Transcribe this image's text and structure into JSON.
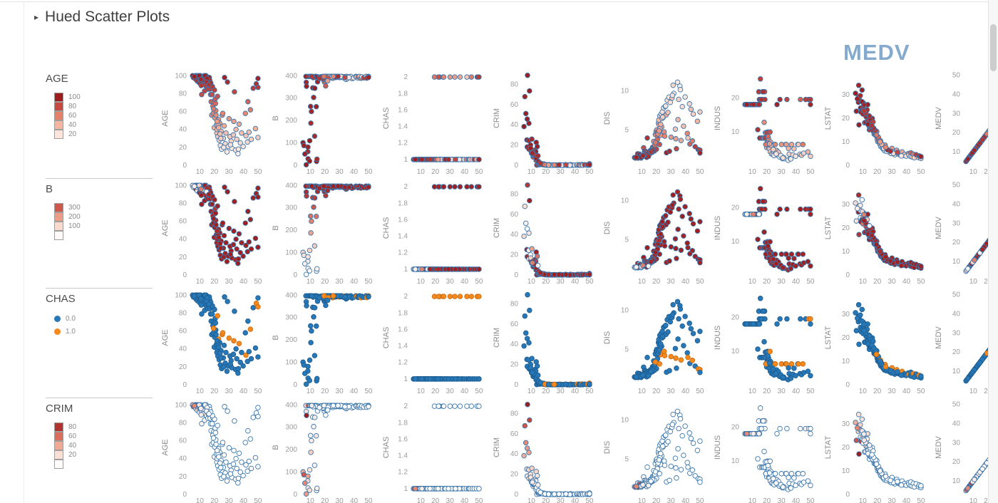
{
  "header": {
    "collapse_icon": "▸",
    "title": "Hued Scatter Plots"
  },
  "matrix_title": "MEDV",
  "colors": {
    "accent_title": "#84abce",
    "point_stroke": "#3b76ab",
    "separator": "#c9c9c9",
    "tick_text": "#9b9b9b"
  },
  "chart_data": {
    "type": "scatter",
    "description": "4x8 scatter-plot matrix of housing features vs MEDV (x axis 10-50 on every panel); each row of panels is hued by a different variable (AGE, B, CHAS, CRIM); last column is MEDV vs MEDV diagonal",
    "grid": "off",
    "x": {
      "field": "MEDV",
      "domain": [
        3,
        52
      ],
      "ticks": [
        10,
        20,
        30,
        40,
        50
      ]
    },
    "columns": [
      {
        "label": "AGE",
        "field": "AGE",
        "domain": [
          0,
          105
        ],
        "ticks": [
          0,
          20,
          40,
          60,
          80,
          100
        ]
      },
      {
        "label": "B",
        "field": "B",
        "domain": [
          0,
          420
        ],
        "ticks": [
          0,
          100,
          200,
          300,
          400
        ]
      },
      {
        "label": "CHAS",
        "field": "CHAS",
        "domain": [
          0.93,
          2.07
        ],
        "ticks": [
          1,
          1.2,
          1.4,
          1.6,
          1.8,
          2
        ],
        "transform": "chas"
      },
      {
        "label": "CRIM",
        "field": "CRIM",
        "domain": [
          0,
          93
        ],
        "ticks": [
          0,
          20,
          40,
          60,
          80
        ]
      },
      {
        "label": "DIS",
        "field": "DIS",
        "domain": [
          0.5,
          12.5
        ],
        "ticks": [
          5,
          10
        ]
      },
      {
        "label": "INDUS",
        "field": "INDUS",
        "domain": [
          0,
          28
        ],
        "ticks": [
          10,
          20
        ]
      },
      {
        "label": "LSTAT",
        "field": "LSTAT",
        "domain": [
          0,
          40
        ],
        "ticks": [
          0,
          10,
          20,
          30
        ]
      },
      {
        "label": "MEDV",
        "field": "MEDV",
        "domain": [
          3,
          52
        ],
        "ticks": [
          10,
          20,
          30,
          40,
          50
        ]
      }
    ],
    "hue_rows": [
      {
        "title": "AGE",
        "type": "seq",
        "field": "AGE",
        "domain": [
          0,
          100
        ],
        "cells": [
          100,
          80,
          60,
          40,
          20
        ],
        "labels": [
          "100",
          "80",
          "60",
          "40",
          "20"
        ]
      },
      {
        "title": "B",
        "type": "seq",
        "field": "B",
        "domain": [
          0,
          400
        ],
        "cells": [
          300,
          200,
          100,
          15
        ],
        "labels": [
          "300",
          "200",
          "100",
          ""
        ]
      },
      {
        "title": "CHAS",
        "type": "cat",
        "field": "CHAS",
        "entries": [
          {
            "label": "0.0",
            "value": 0,
            "fill": "#2878b8",
            "stroke": "#1d5e92"
          },
          {
            "label": "1.0",
            "value": 1,
            "fill": "#f6891e",
            "stroke": "#c96d12"
          }
        ]
      },
      {
        "title": "CRIM",
        "type": "seq",
        "field": "CRIM",
        "domain": [
          0,
          89
        ],
        "cells": [
          80,
          60,
          40,
          20,
          2
        ],
        "labels": [
          "80",
          "60",
          "40",
          "20",
          ""
        ]
      }
    ],
    "seq_color_stops": [
      "#ffffff",
      "#fde5dc",
      "#f5b6a0",
      "#e5816b",
      "#c74a42",
      "#9e1c1c"
    ],
    "point_stroke": "#3b76ab",
    "fields": [
      "MEDV",
      "AGE",
      "B",
      "CHAS",
      "CRIM",
      "DIS",
      "INDUS",
      "LSTAT"
    ],
    "records": [
      [
        5.0,
        100,
        101.0,
        0,
        38.35,
        1.49,
        18.1,
        30.6
      ],
      [
        5.6,
        98,
        88.0,
        0,
        67.92,
        1.43,
        18.1,
        23.0
      ],
      [
        7.0,
        100,
        396.9,
        0,
        25.05,
        1.59,
        18.1,
        26.8
      ],
      [
        7.2,
        100,
        2.6,
        0,
        45.75,
        1.67,
        18.1,
        29.1
      ],
      [
        7.2,
        96,
        370.7,
        0,
        18.08,
        1.96,
        18.1,
        34.0
      ],
      [
        7.4,
        100,
        353.0,
        0,
        88.98,
        1.42,
        18.1,
        17.2
      ],
      [
        8.3,
        94,
        60.7,
        0,
        24.39,
        1.75,
        18.1,
        29.6
      ],
      [
        8.4,
        98,
        81.3,
        0,
        41.53,
        1.66,
        18.1,
        27.4
      ],
      [
        8.5,
        100,
        28.8,
        0,
        15.86,
        1.92,
        18.1,
        24.4
      ],
      [
        8.8,
        100,
        396.9,
        0,
        73.53,
        1.8,
        18.1,
        22.6
      ],
      [
        9.5,
        100,
        18.8,
        0,
        20.08,
        1.44,
        18.1,
        32.0
      ],
      [
        9.7,
        92,
        396.9,
        0,
        14.24,
        1.66,
        18.1,
        23.7
      ],
      [
        10.2,
        97,
        262.8,
        0,
        11.81,
        1.66,
        18.1,
        21.8
      ],
      [
        10.4,
        95,
        188.1,
        0,
        25.94,
        1.62,
        18.1,
        24.9
      ],
      [
        10.5,
        100,
        396.9,
        0,
        14.33,
        1.59,
        18.1,
        26.5
      ],
      [
        10.9,
        94,
        396.9,
        0,
        12.25,
        1.78,
        18.1,
        23.8
      ],
      [
        11.3,
        79,
        396.9,
        0,
        8.26,
        2.74,
        18.1,
        18.1
      ],
      [
        11.7,
        98,
        346.0,
        0,
        9.6,
        1.8,
        18.1,
        23.3
      ],
      [
        11.9,
        98,
        393.5,
        0,
        9.92,
        2.28,
        18.1,
        18.3
      ],
      [
        12.3,
        96,
        302.8,
        0,
        9.91,
        2.07,
        18.1,
        20.6
      ],
      [
        12.7,
        91,
        395.1,
        0,
        15.18,
        2.26,
        18.1,
        23.3
      ],
      [
        13.0,
        94,
        130.0,
        0,
        9.82,
        2.07,
        18.1,
        23.6
      ],
      [
        13.1,
        100,
        344.1,
        0,
        13.52,
        1.91,
        18.1,
        20.3
      ],
      [
        13.3,
        83,
        396.9,
        0,
        4.9,
        2.13,
        18.1,
        18.9
      ],
      [
        13.4,
        100,
        396.9,
        0,
        22.6,
        1.52,
        18.1,
        25.8
      ],
      [
        13.8,
        91,
        396.9,
        0,
        0.21,
        3.98,
        10.6,
        18.8
      ],
      [
        14.1,
        98,
        261.9,
        0,
        18.5,
        1.99,
        18.1,
        21.1
      ],
      [
        14.3,
        100,
        17.6,
        0,
        9.19,
        2.0,
        18.1,
        16.7
      ],
      [
        14.5,
        88,
        396.2,
        0,
        1.62,
        1.76,
        21.9,
        15.1
      ],
      [
        14.9,
        93,
        387.9,
        0,
        2.37,
        2.01,
        19.6,
        16.3
      ],
      [
        15.2,
        96,
        394.0,
        0,
        1.23,
        2.26,
        8.1,
        18.7
      ],
      [
        15.6,
        85,
        394.7,
        0,
        0.62,
        1.98,
        25.7,
        16.0
      ],
      [
        16.1,
        89,
        387.3,
        0,
        1.42,
        2.42,
        19.6,
        16.1
      ],
      [
        16.5,
        98,
        391.7,
        0,
        0.84,
        2.44,
        8.1,
        19.9
      ],
      [
        17.1,
        85,
        392.7,
        0,
        1.61,
        2.15,
        21.9,
        18.5
      ],
      [
        17.4,
        79,
        395.6,
        0,
        0.78,
        2.8,
        8.1,
        14.4
      ],
      [
        17.8,
        71,
        390.1,
        0,
        1.0,
        2.68,
        8.1,
        13.3
      ],
      [
        18.2,
        56,
        395.0,
        0,
        0.72,
        3.55,
        12.8,
        14.0
      ],
      [
        18.5,
        79,
        394.3,
        0,
        0.65,
        2.9,
        21.9,
        13.0
      ],
      [
        18.9,
        86,
        396.9,
        0,
        0.8,
        2.71,
        8.1,
        14.7
      ],
      [
        19.3,
        58,
        395.6,
        0,
        0.33,
        4.43,
        6.2,
        12.5
      ],
      [
        19.6,
        70,
        372.8,
        0,
        0.54,
        3.37,
        6.2,
        14.4
      ],
      [
        19.9,
        42,
        393.6,
        0,
        0.26,
        4.84,
        5.3,
        11.2
      ],
      [
        20.3,
        53,
        396.9,
        0,
        0.22,
        5.01,
        7.0,
        10.1
      ],
      [
        20.6,
        74,
        354.3,
        0,
        0.43,
        4.72,
        9.9,
        11.6
      ],
      [
        21.0,
        61,
        377.7,
        0,
        0.34,
        4.16,
        7.4,
        10.5
      ],
      [
        21.4,
        45,
        396.9,
        0,
        0.17,
        5.89,
        5.1,
        9.8
      ],
      [
        21.7,
        36,
        393.4,
        0,
        0.12,
        6.27,
        4.9,
        9.3
      ],
      [
        22.0,
        40,
        395.2,
        0,
        0.14,
        5.62,
        6.1,
        8.7
      ],
      [
        22.4,
        32,
        396.9,
        0,
        0.1,
        6.81,
        4.0,
        8.0
      ],
      [
        22.9,
        51,
        389.7,
        1,
        0.3,
        4.33,
        6.2,
        9.1
      ],
      [
        23.3,
        28,
        394.6,
        0,
        0.09,
        7.04,
        3.4,
        7.6
      ],
      [
        23.7,
        47,
        396.9,
        0,
        0.19,
        5.41,
        5.9,
        8.4
      ],
      [
        24.1,
        22,
        395.9,
        0,
        0.08,
        7.31,
        3.2,
        6.9
      ],
      [
        24.6,
        38,
        393.9,
        0,
        0.11,
        6.59,
        4.1,
        7.3
      ],
      [
        25.0,
        18,
        396.9,
        0,
        0.06,
        7.83,
        2.9,
        6.2
      ],
      [
        25.4,
        56,
        388.5,
        1,
        0.33,
        4.76,
        6.2,
        8.6
      ],
      [
        26.2,
        30,
        394.9,
        0,
        0.08,
        8.01,
        3.8,
        6.5
      ],
      [
        26.7,
        44,
        396.3,
        0,
        0.12,
        6.93,
        4.4,
        6.8
      ],
      [
        27.5,
        24,
        392.2,
        0,
        0.07,
        8.79,
        3.0,
        5.9
      ],
      [
        28.0,
        36,
        396.9,
        0,
        0.1,
        7.24,
        3.9,
        6.1
      ],
      [
        28.7,
        15,
        394.1,
        0,
        0.05,
        9.19,
        2.5,
        5.4
      ],
      [
        29.6,
        21,
        396.9,
        0,
        0.06,
        8.53,
        2.9,
        5.0
      ],
      [
        30.1,
        52,
        391.9,
        1,
        0.44,
        4.09,
        6.2,
        7.2
      ],
      [
        30.8,
        32,
        392.8,
        0,
        0.05,
        9.08,
        2.0,
        5.6
      ],
      [
        31.5,
        27,
        396.9,
        0,
        0.05,
        10.71,
        2.3,
        4.8
      ],
      [
        32.0,
        19,
        392.9,
        0,
        0.04,
        9.67,
        2.0,
        4.5
      ],
      [
        33.1,
        34,
        390.5,
        0,
        0.33,
        5.12,
        6.2,
        5.3
      ],
      [
        33.4,
        49,
        395.8,
        1,
        0.52,
        3.88,
        6.2,
        6.4
      ],
      [
        34.6,
        17,
        383.4,
        0,
        0.03,
        11.1,
        1.5,
        4.7
      ],
      [
        34.9,
        40,
        396.9,
        0,
        0.09,
        6.33,
        5.0,
        5.1
      ],
      [
        35.4,
        29,
        387.0,
        0,
        0.05,
        8.91,
        3.3,
        4.6
      ],
      [
        36.2,
        13,
        395.6,
        0,
        0.03,
        10.59,
        2.0,
        4.3
      ],
      [
        37.0,
        46,
        393.1,
        1,
        0.61,
        3.66,
        6.2,
        5.7
      ],
      [
        37.9,
        25,
        396.9,
        0,
        0.06,
        7.98,
        3.1,
        4.2
      ],
      [
        38.7,
        36,
        387.4,
        0,
        0.18,
        5.49,
        4.9,
        4.6
      ],
      [
        39.8,
        21,
        390.7,
        0,
        0.04,
        9.22,
        2.7,
        3.9
      ],
      [
        41.3,
        58,
        396.9,
        0,
        0.29,
        4.57,
        6.2,
        5.0
      ],
      [
        41.7,
        33,
        394.5,
        1,
        0.53,
        3.99,
        6.2,
        4.4
      ],
      [
        42.8,
        26,
        389.9,
        0,
        0.05,
        8.34,
        3.3,
        3.8
      ],
      [
        43.1,
        71,
        395.2,
        0,
        0.58,
        3.22,
        19.6,
        5.3
      ],
      [
        43.8,
        37,
        396.9,
        0,
        0.06,
        7.65,
        3.0,
        3.6
      ],
      [
        44.8,
        62,
        388.4,
        1,
        0.67,
        3.61,
        6.2,
        4.7
      ],
      [
        45.4,
        29,
        395.0,
        0,
        0.08,
        7.04,
        3.6,
        3.2
      ],
      [
        46.7,
        86,
        390.6,
        0,
        0.52,
        2.87,
        19.6,
        4.5
      ],
      [
        48.3,
        41,
        396.9,
        0,
        0.11,
        6.12,
        4.0,
        3.3
      ],
      [
        48.8,
        91,
        389.6,
        1,
        0.57,
        2.51,
        19.6,
        4.0
      ],
      [
        50.0,
        87,
        396.9,
        1,
        1.46,
        2.44,
        19.6,
        3.2
      ],
      [
        50.0,
        31,
        394.7,
        0,
        0.06,
        7.31,
        2.7,
        2.9
      ],
      [
        50.0,
        97,
        392.5,
        0,
        0.61,
        2.07,
        18.1,
        3.7
      ],
      [
        13.6,
        100,
        394.3,
        0,
        6.71,
        1.93,
        18.1,
        17.4
      ],
      [
        12.0,
        90,
        391.4,
        0,
        10.83,
        1.82,
        18.1,
        22.1
      ],
      [
        16.8,
        95,
        393.7,
        0,
        1.13,
        2.21,
        19.6,
        15.0
      ],
      [
        19.0,
        66,
        383.8,
        0,
        0.57,
        3.08,
        9.7,
        13.1
      ],
      [
        20.1,
        84,
        392.5,
        0,
        0.62,
        2.55,
        9.7,
        12.3
      ],
      [
        21.2,
        56,
        396.9,
        0,
        0.29,
        4.5,
        7.9,
        10.9
      ],
      [
        22.6,
        45,
        394.1,
        0,
        0.21,
        5.2,
        6.9,
        9.5
      ],
      [
        23.9,
        35,
        396.9,
        0,
        0.13,
        6.47,
        5.6,
        7.9
      ],
      [
        18.7,
        88,
        386.7,
        0,
        1.34,
        2.33,
        19.6,
        14.8
      ],
      [
        15.0,
        97,
        372.5,
        0,
        3.69,
        1.88,
        18.1,
        19.8
      ],
      [
        9.6,
        100,
        109.9,
        0,
        16.81,
        1.56,
        18.1,
        27.0
      ],
      [
        11.0,
        89,
        396.9,
        0,
        13.36,
        1.71,
        18.1,
        23.1
      ],
      [
        17.5,
        92,
        393.3,
        0,
        0.98,
        2.36,
        21.9,
        15.8
      ],
      [
        20.8,
        69,
        396.9,
        0,
        0.35,
        3.79,
        8.6,
        11.9
      ],
      [
        23.0,
        42,
        396.1,
        0,
        0.16,
        5.72,
        5.9,
        8.9
      ],
      [
        24.4,
        30,
        393.5,
        0,
        0.1,
        6.65,
        4.7,
        7.1
      ],
      [
        26.4,
        20,
        396.9,
        0,
        0.07,
        8.06,
        3.4,
        5.9
      ],
      [
        31.1,
        23,
        396.9,
        0,
        0.04,
        9.42,
        2.2,
        5.1
      ],
      [
        36.5,
        18,
        392.3,
        0,
        0.03,
        10.15,
        1.9,
        4.0
      ],
      [
        14.6,
        93,
        27.3,
        0,
        9.34,
        1.64,
        18.1,
        20.9
      ],
      [
        19.4,
        63,
        396.9,
        1,
        0.55,
        3.4,
        6.2,
        12.9
      ],
      [
        22.2,
        77,
        389.3,
        1,
        0.62,
        3.15,
        9.9,
        10.4
      ],
      [
        27.0,
        98,
        394.1,
        0,
        0.29,
        2.1,
        18.1,
        6.6
      ],
      [
        29.0,
        93,
        396.9,
        0,
        0.41,
        2.29,
        19.6,
        6.0
      ],
      [
        33.8,
        82,
        392.0,
        0,
        0.46,
        2.61,
        19.6,
        5.5
      ],
      [
        10.8,
        96,
        240.2,
        0,
        12.05,
        1.73,
        18.1,
        25.7
      ],
      [
        6.3,
        99,
        50.5,
        0,
        51.14,
        1.51,
        18.1,
        28.3
      ],
      [
        16.3,
        90,
        388.0,
        0,
        2.1,
        2.18,
        19.6,
        16.9
      ],
      [
        21.9,
        49,
        377.1,
        0,
        0.25,
        4.9,
        6.4,
        10.0
      ],
      [
        25.8,
        58,
        396.9,
        1,
        0.36,
        4.22,
        6.2,
        7.7
      ]
    ]
  }
}
